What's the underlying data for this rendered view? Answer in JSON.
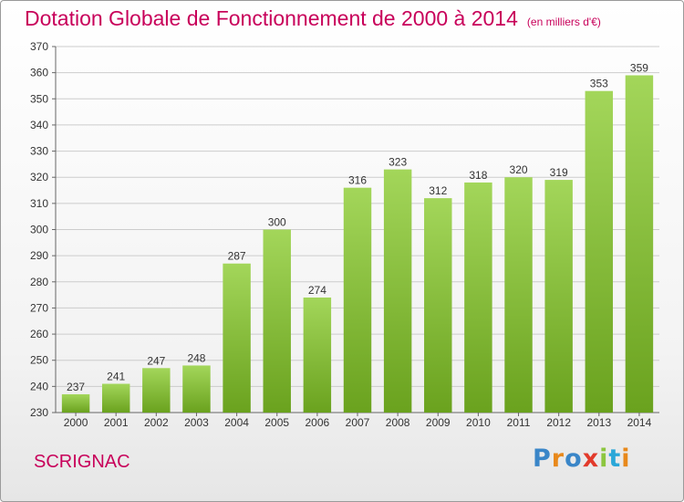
{
  "header": {
    "title": "Dotation Globale de Fonctionnement de 2000 à 2014",
    "subtitle": "(en milliers d'€)"
  },
  "footer": {
    "commune": "SCRIGNAC",
    "logo": "Proxiti"
  },
  "colors": {
    "title": "#c8005a",
    "bar_light": "#a3d65a",
    "bar_dark": "#6aa21e",
    "grid": "#cccccc"
  },
  "chart_data": {
    "type": "bar",
    "categories": [
      "2000",
      "2001",
      "2002",
      "2003",
      "2004",
      "2005",
      "2006",
      "2007",
      "2008",
      "2009",
      "2010",
      "2011",
      "2012",
      "2013",
      "2014"
    ],
    "values": [
      237,
      241,
      247,
      248,
      287,
      300,
      274,
      316,
      323,
      312,
      318,
      320,
      319,
      353,
      359
    ],
    "ylim": [
      230,
      370
    ],
    "yticks": [
      230,
      240,
      250,
      260,
      270,
      280,
      290,
      300,
      310,
      320,
      330,
      340,
      350,
      360,
      370
    ],
    "grid": true,
    "data_labels": true,
    "legend": "none"
  }
}
